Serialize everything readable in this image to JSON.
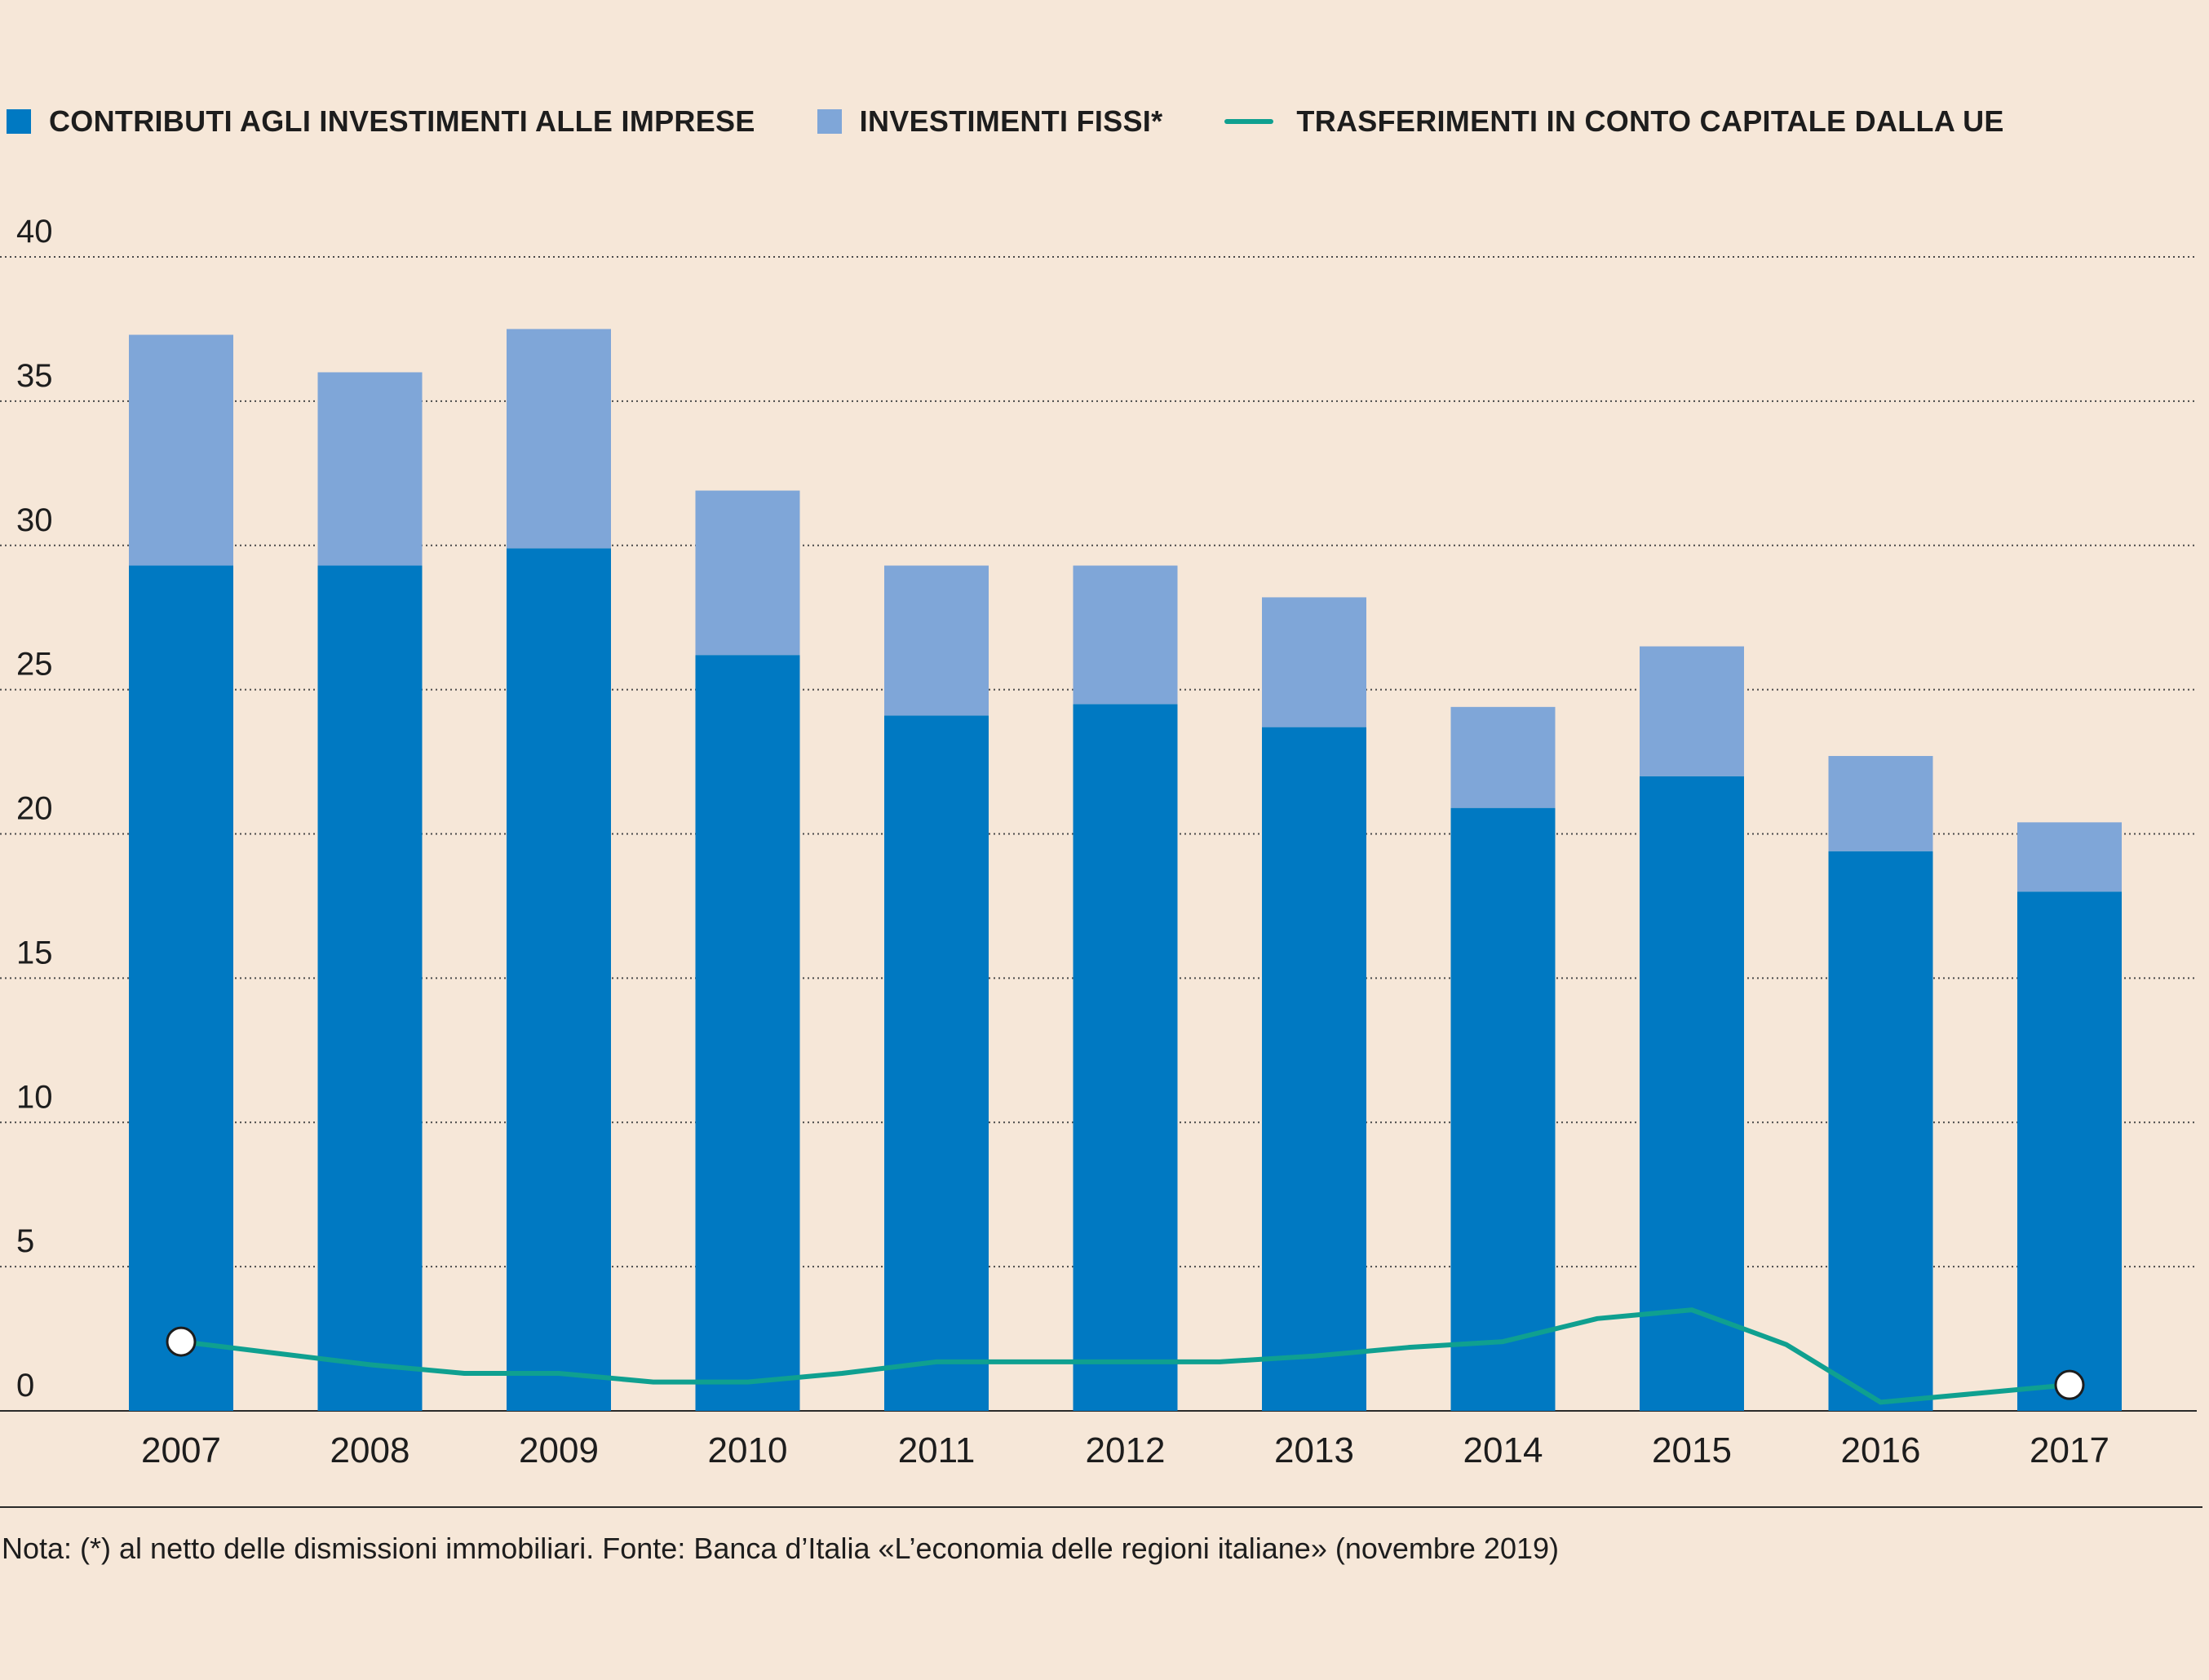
{
  "legend": [
    {
      "label": "CONTRIBUTI AGLI INVESTIMENTI ALLE IMPRESE",
      "kind": "square",
      "color": "#0079c2"
    },
    {
      "label": "INVESTIMENTI FISSI*",
      "kind": "square",
      "color": "#7fa6d8"
    },
    {
      "label": "TRASFERIMENTI IN CONTO CAPITALE DALLA UE",
      "kind": "line",
      "color": "#0fa090"
    }
  ],
  "note": "Nota: (*) al netto delle dismissioni immobiliari. Fonte: Banca d’Italia «L’economia delle regioni italiane» (novembre 2019)",
  "chart_data": {
    "type": "bar",
    "stacked": true,
    "categories": [
      "2007",
      "2008",
      "2009",
      "2010",
      "2011",
      "2012",
      "2013",
      "2014",
      "2015",
      "2016",
      "2017"
    ],
    "series": [
      {
        "name": "CONTRIBUTI AGLI INVESTIMENTI ALLE IMPRESE",
        "type": "bar",
        "color": "#0079c2",
        "values": [
          29.3,
          29.3,
          29.9,
          26.2,
          24.1,
          24.5,
          23.7,
          20.9,
          22.0,
          19.4,
          18.0
        ]
      },
      {
        "name": "INVESTIMENTI FISSI*",
        "type": "bar",
        "color": "#7fa6d8",
        "values": [
          8.0,
          6.7,
          7.6,
          5.7,
          5.2,
          4.8,
          4.5,
          3.5,
          4.5,
          3.3,
          2.4
        ]
      },
      {
        "name": "TRASFERIMENTI IN CONTO CAPITALE DALLA UE",
        "type": "line",
        "color": "#0fa090",
        "x": [
          2007,
          2007.5,
          2008,
          2008.5,
          2009,
          2009.5,
          2010,
          2010.5,
          2011,
          2011.5,
          2012,
          2012.5,
          2013,
          2013.5,
          2014,
          2014.5,
          2015,
          2015.5,
          2016,
          2016.5,
          2017
        ],
        "values": [
          2.4,
          2.0,
          1.6,
          1.3,
          1.3,
          1.0,
          1.0,
          1.3,
          1.7,
          1.7,
          1.7,
          1.7,
          1.9,
          2.2,
          2.4,
          3.2,
          3.5,
          2.3,
          0.3,
          0.6,
          0.9
        ],
        "markers_at": [
          2007,
          2017
        ]
      }
    ],
    "yticks": [
      0,
      5,
      10,
      15,
      20,
      25,
      30,
      35,
      40
    ],
    "ylim": [
      0,
      40
    ],
    "grid": "dotted horizontal",
    "legend_position": "top"
  }
}
